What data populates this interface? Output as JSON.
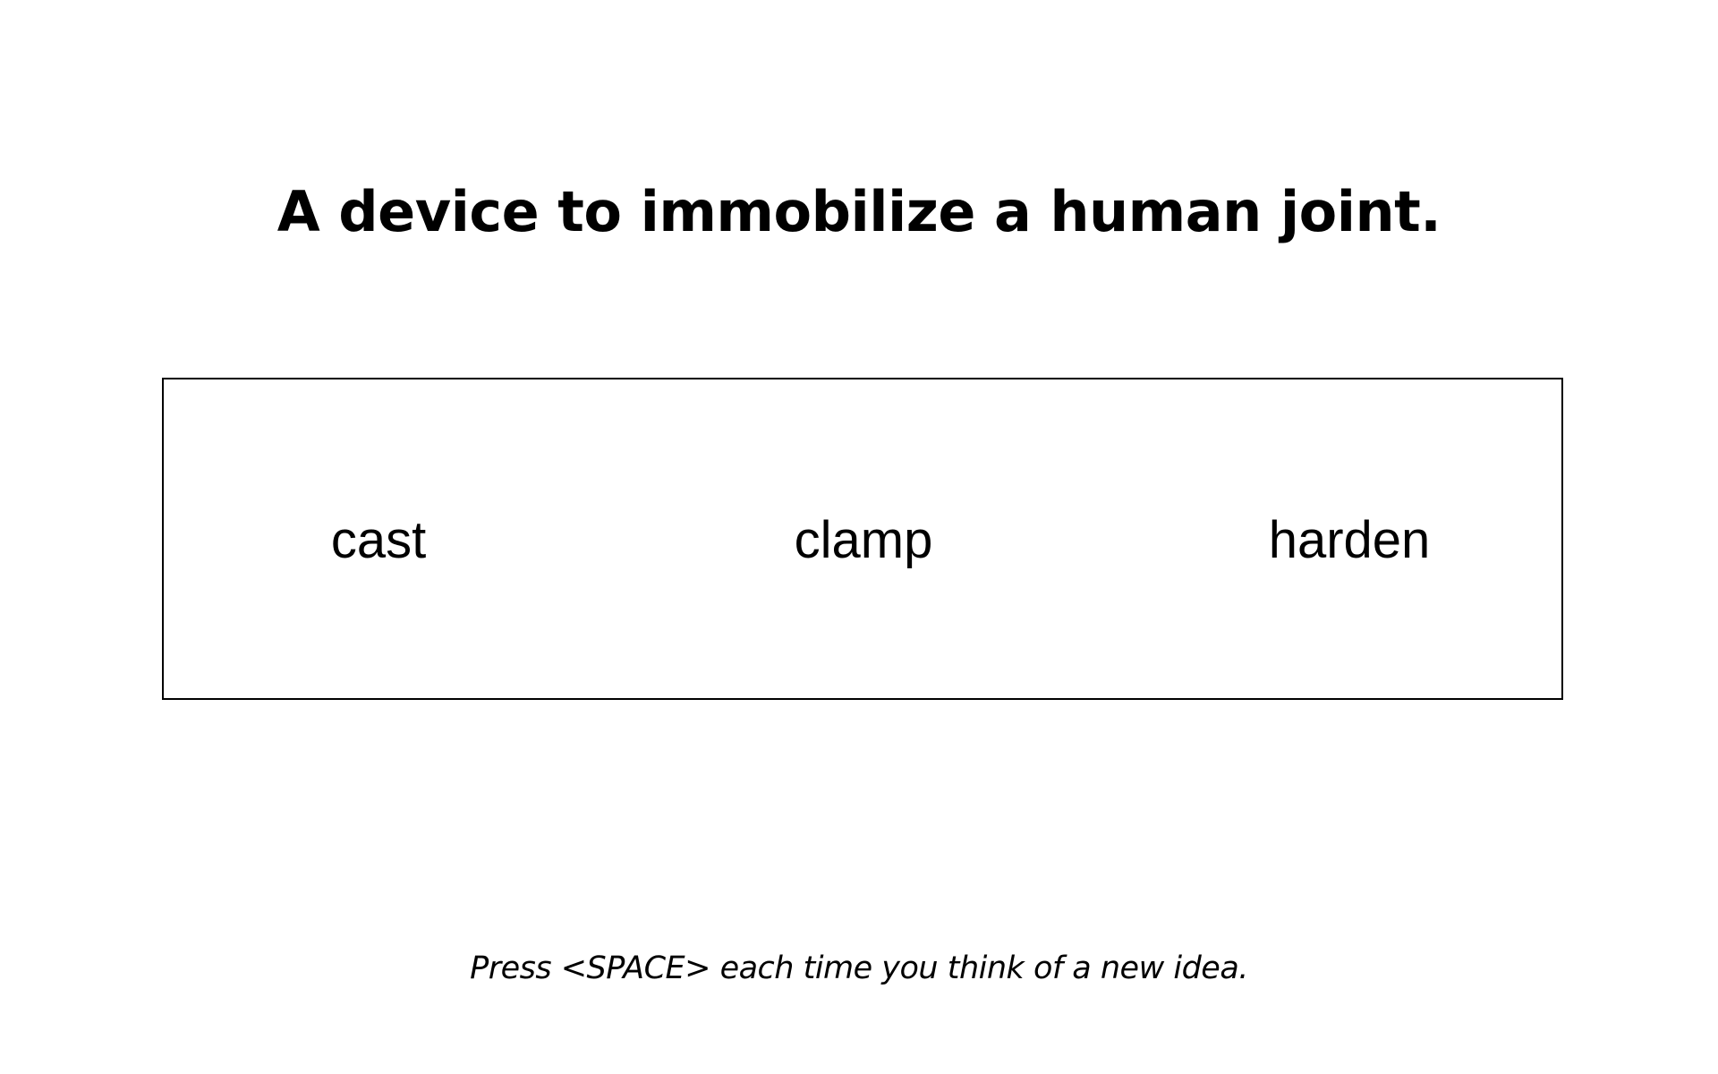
{
  "prompt": {
    "text": "A device to immobilize a human joint."
  },
  "words": [
    {
      "text": "cast"
    },
    {
      "text": "clamp"
    },
    {
      "text": "harden"
    }
  ],
  "instruction": {
    "text": "Press <SPACE> each time you think of a new idea."
  },
  "colors": {
    "background": "#ffffff",
    "text": "#000000",
    "border": "#000000"
  }
}
